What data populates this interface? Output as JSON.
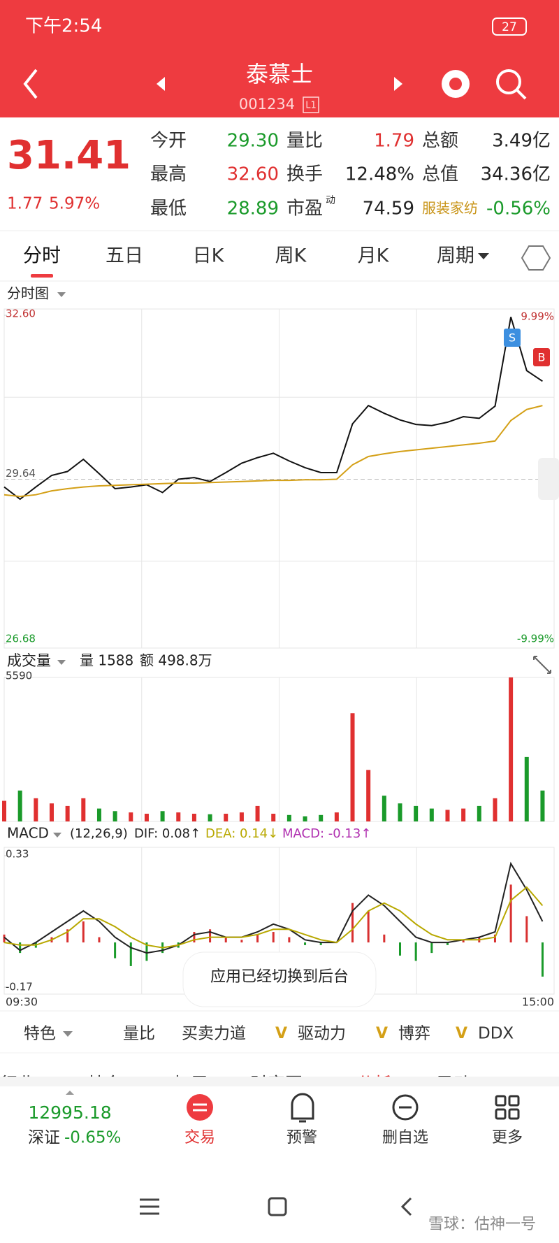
{
  "status": {
    "time": "下午2:54",
    "battery": "27"
  },
  "header": {
    "title": "泰慕士",
    "code": "001234",
    "badge": "L1"
  },
  "quote": {
    "price": "31.41",
    "change": "1.77",
    "change_pct": "5.97%",
    "stats": [
      {
        "label": "今开",
        "value": "29.30",
        "color": "#1a9a2a"
      },
      {
        "label": "量比",
        "value": "1.79",
        "color": "#e03030"
      },
      {
        "label": "总额",
        "value": "3.49亿",
        "color": "#222222"
      },
      {
        "label": "最高",
        "value": "32.60",
        "color": "#e03030"
      },
      {
        "label": "换手",
        "value": "12.48%",
        "color": "#222222"
      },
      {
        "label": "总值",
        "value": "34.36亿",
        "color": "#222222"
      },
      {
        "label": "最低",
        "value": "28.89",
        "color": "#1a9a2a"
      },
      {
        "label": "市盈",
        "sup": "动",
        "value": "74.59",
        "color": "#222222"
      },
      {
        "label": "服装家纺",
        "value": "-0.56%",
        "color": "#1a9a2a"
      }
    ]
  },
  "tabs": [
    "分时",
    "五日",
    "日K",
    "周K",
    "月K",
    "周期"
  ],
  "chart_data": [
    {
      "type": "line",
      "title": "分时图",
      "ylim": [
        26.68,
        32.6
      ],
      "yticks": [
        {
          "value": 32.6,
          "label": "32.60"
        },
        {
          "value": 29.64,
          "label": "29.64"
        },
        {
          "value": 26.68,
          "label": "26.68"
        }
      ],
      "y2lim": [
        -9.99,
        9.99
      ],
      "y2ticks": [
        {
          "value": 9.99,
          "label": "9.99%"
        },
        {
          "value": -9.99,
          "label": "-9.99%"
        }
      ],
      "signals": [
        "S",
        "B"
      ],
      "series": [
        {
          "color": "#111111",
          "values": [
            29.5,
            29.28,
            29.5,
            29.71,
            29.78,
            30.0,
            29.74,
            29.47,
            29.5,
            29.54,
            29.4,
            29.64,
            29.67,
            29.6,
            29.76,
            29.93,
            30.03,
            30.11,
            29.97,
            29.85,
            29.76,
            29.76,
            30.64,
            30.97,
            30.83,
            30.71,
            30.63,
            30.61,
            30.67,
            30.77,
            30.74,
            30.96,
            32.57,
            31.6,
            31.41
          ]
        },
        {
          "color": "#d4a017",
          "values": [
            29.36,
            29.33,
            29.36,
            29.43,
            29.47,
            29.5,
            29.52,
            29.53,
            29.54,
            29.55,
            29.56,
            29.57,
            29.57,
            29.58,
            29.59,
            29.6,
            29.61,
            29.62,
            29.62,
            29.63,
            29.63,
            29.64,
            29.9,
            30.05,
            30.1,
            30.14,
            30.17,
            30.2,
            30.23,
            30.26,
            30.29,
            30.33,
            30.7,
            30.9,
            30.97
          ]
        }
      ]
    },
    {
      "type": "bar",
      "title": "成交量",
      "volume_label": "量 1588",
      "amount_label": "额 498.8万",
      "ylim": [
        0,
        5590
      ],
      "yticks": [
        5590
      ],
      "values": [
        800,
        1200,
        900,
        700,
        600,
        900,
        500,
        400,
        350,
        300,
        400,
        350,
        300,
        280,
        300,
        350,
        600,
        300,
        250,
        200,
        250,
        350,
        4200,
        2000,
        1000,
        700,
        600,
        500,
        450,
        500,
        600,
        900,
        5590,
        2500,
        1200
      ],
      "colors": [
        "#e03030",
        "#1a9a2a",
        "#e03030",
        "#e03030",
        "#e03030",
        "#e03030",
        "#1a9a2a",
        "#1a9a2a",
        "#e03030",
        "#e03030",
        "#1a9a2a",
        "#e03030",
        "#e03030",
        "#1a9a2a",
        "#e03030",
        "#e03030",
        "#e03030",
        "#e03030",
        "#1a9a2a",
        "#1a9a2a",
        "#1a9a2a",
        "#e03030",
        "#e03030",
        "#e03030",
        "#1a9a2a",
        "#1a9a2a",
        "#1a9a2a",
        "#1a9a2a",
        "#e03030",
        "#e03030",
        "#1a9a2a",
        "#e03030",
        "#e03030",
        "#1a9a2a",
        "#1a9a2a"
      ]
    },
    {
      "type": "macd",
      "title": "MACD",
      "params": "(12,26,9)",
      "dif_label": "DIF: 0.08↑",
      "dea_label": "DEA: 0.14↓",
      "macd_label": "MACD: -0.13↑",
      "ylim": [
        -0.17,
        0.33
      ],
      "yticks": [
        0.33,
        -0.17
      ],
      "x_labels": [
        "09:30",
        "15:00"
      ],
      "bars": {
        "up_color": "#d83030",
        "down_color": "#1a9a2a",
        "values": [
          0.03,
          -0.04,
          -0.02,
          0.02,
          0.05,
          0.08,
          0.02,
          -0.06,
          -0.09,
          -0.07,
          -0.04,
          -0.02,
          0.04,
          0.05,
          0.02,
          0.01,
          0.03,
          0.04,
          0.02,
          -0.01,
          -0.01,
          0.0,
          0.15,
          0.12,
          0.03,
          -0.05,
          -0.07,
          -0.04,
          -0.01,
          0.01,
          0.02,
          0.03,
          0.22,
          0.1,
          -0.13
        ]
      },
      "series": [
        {
          "color": "#222222",
          "values": [
            0.02,
            -0.03,
            0.0,
            0.04,
            0.08,
            0.12,
            0.08,
            0.02,
            -0.02,
            -0.04,
            -0.03,
            -0.01,
            0.03,
            0.04,
            0.02,
            0.02,
            0.04,
            0.07,
            0.05,
            0.01,
            0.0,
            0.0,
            0.12,
            0.18,
            0.14,
            0.08,
            0.02,
            0.0,
            0.0,
            0.01,
            0.02,
            0.04,
            0.3,
            0.2,
            0.08
          ]
        },
        {
          "color": "#b8a800",
          "values": [
            0.0,
            -0.01,
            -0.01,
            0.01,
            0.04,
            0.09,
            0.09,
            0.06,
            0.02,
            -0.01,
            -0.02,
            -0.01,
            0.01,
            0.02,
            0.02,
            0.02,
            0.03,
            0.05,
            0.05,
            0.03,
            0.01,
            0.0,
            0.05,
            0.12,
            0.15,
            0.12,
            0.07,
            0.03,
            0.01,
            0.01,
            0.01,
            0.02,
            0.16,
            0.21,
            0.14
          ]
        }
      ]
    }
  ],
  "toast": "应用已经切换到后台",
  "indicators": [
    "特色",
    "量比",
    "买卖力道",
    "驱动力",
    "博弈",
    "DDX"
  ],
  "more_tabs": [
    "行业",
    "基金",
    "扫雷",
    "财富圈",
    "AI分析",
    "异动"
  ],
  "bottom": {
    "index_value": "12995.18",
    "index_name": "深证",
    "index_change": "-0.65%",
    "buttons": [
      "交易",
      "预警",
      "删自选",
      "更多"
    ]
  },
  "watermark": "雪球：估神一号"
}
